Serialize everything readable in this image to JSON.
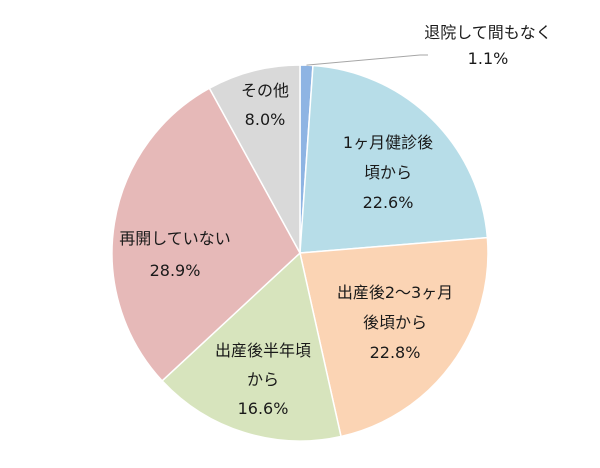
{
  "chart_data": {
    "type": "pie",
    "title": "",
    "start_angle_deg": 0,
    "direction": "clockwise",
    "slices": [
      {
        "lines": [
          "退院して間もなく",
          "1.1%"
        ],
        "value": 1.1,
        "color": "#8eb4e3"
      },
      {
        "lines": [
          "1ヶ月健診後",
          "頃から",
          "22.6%"
        ],
        "value": 22.6,
        "color": "#b7dde8"
      },
      {
        "lines": [
          "出産後2～3ヶ月",
          "後頃から",
          "22.8%"
        ],
        "value": 22.8,
        "color": "#fbd4b4"
      },
      {
        "lines": [
          "出産後半年頃",
          "から",
          "16.6%"
        ],
        "value": 16.6,
        "color": "#d7e4bd"
      },
      {
        "lines": [
          "再開していない",
          "28.9%"
        ],
        "value": 28.9,
        "color": "#e6b9b8"
      },
      {
        "lines": [
          "その他",
          "8.0%"
        ],
        "value": 8.0,
        "color": "#d9d9d9"
      }
    ]
  }
}
